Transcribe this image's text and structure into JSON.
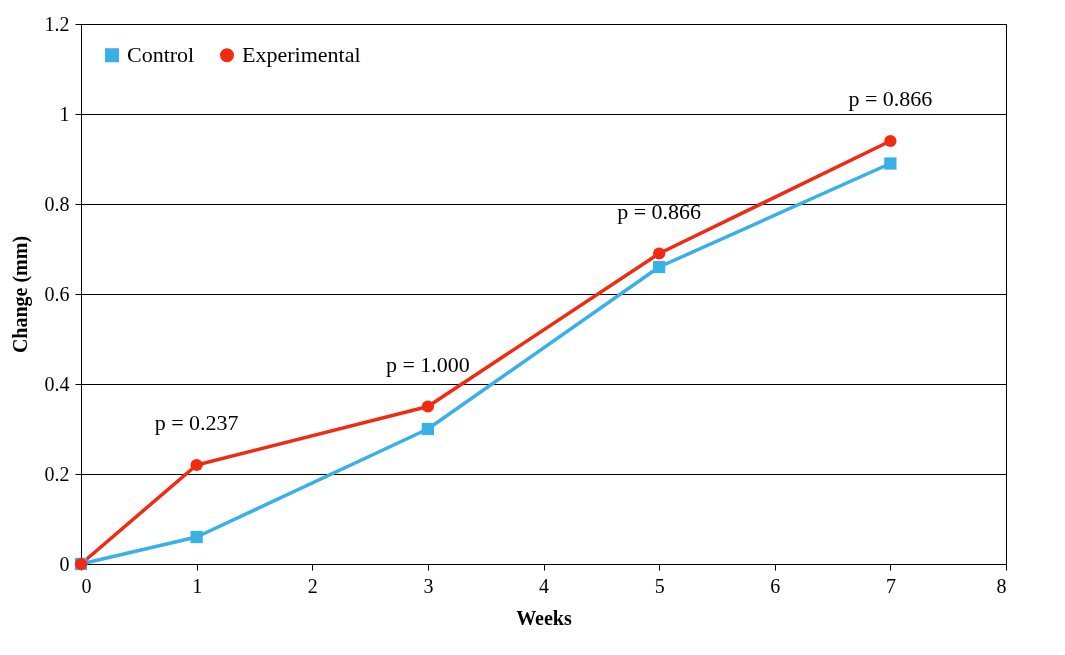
{
  "chart_data": {
    "type": "line",
    "xlabel": "Weeks",
    "ylabel": "Change (mm)",
    "xlim": [
      0,
      8
    ],
    "xticks": [
      0,
      1,
      2,
      3,
      4,
      5,
      6,
      7,
      8
    ],
    "ylim": [
      0,
      1.2
    ],
    "yticks": [
      0,
      0.2,
      0.4,
      0.6,
      0.8,
      1,
      1.2
    ],
    "x": [
      0,
      1,
      3,
      5,
      7
    ],
    "series": [
      {
        "name": "Control",
        "color": "#3ab0e8",
        "marker": "square",
        "values": [
          0,
          0.06,
          0.3,
          0.66,
          0.89
        ]
      },
      {
        "name": "Experimental",
        "color": "#f32a12",
        "marker": "circle",
        "values": [
          0,
          0.22,
          0.35,
          0.69,
          0.94
        ]
      }
    ],
    "annotations": [
      "p = 0.237",
      "p = 1.000",
      "p = 0.866",
      "p = 0.866"
    ],
    "grid": "y",
    "legend": "top left"
  }
}
